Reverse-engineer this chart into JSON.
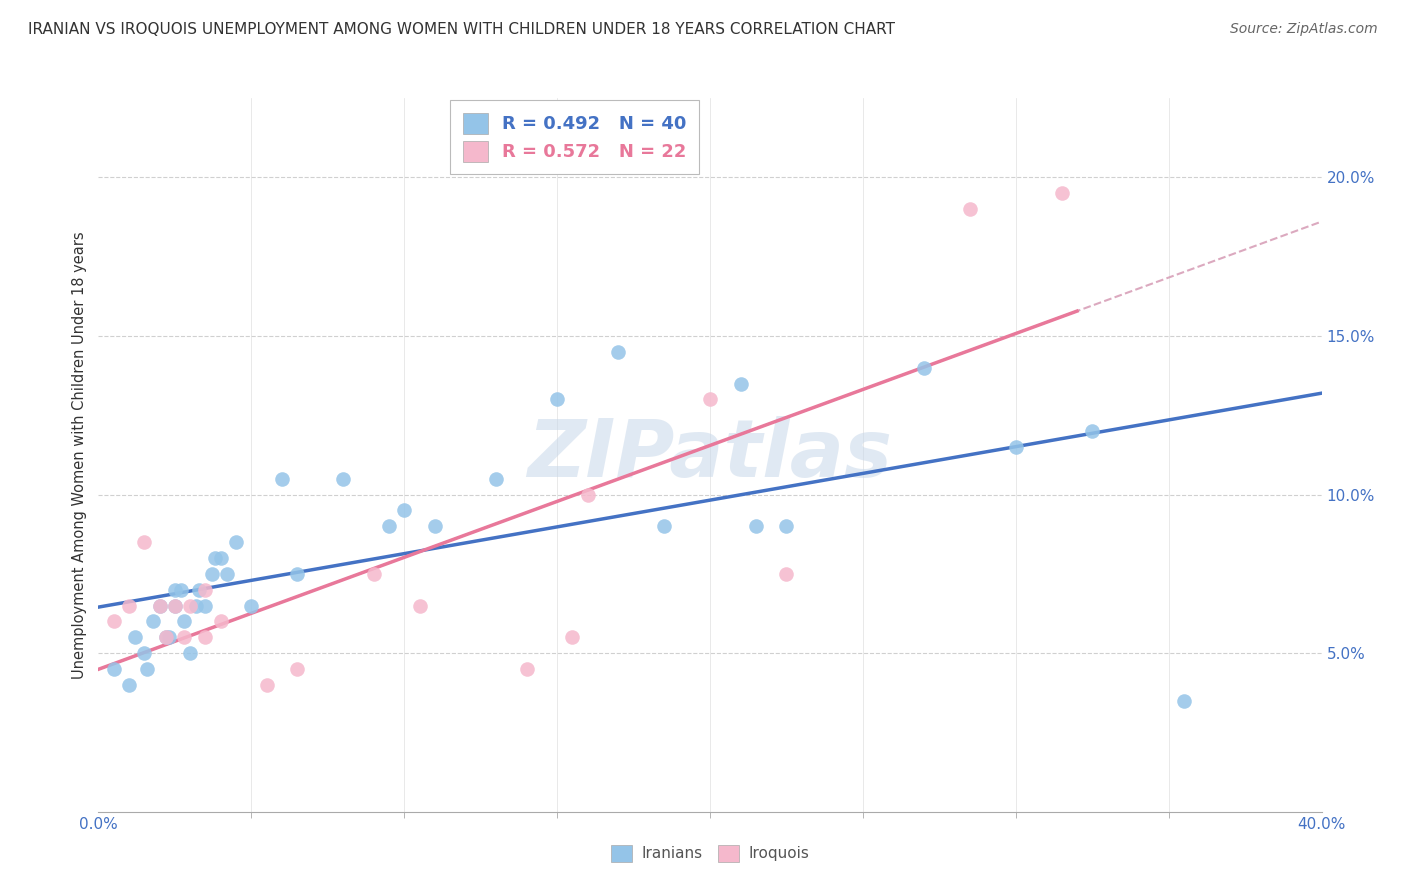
{
  "title": "IRANIAN VS IROQUOIS UNEMPLOYMENT AMONG WOMEN WITH CHILDREN UNDER 18 YEARS CORRELATION CHART",
  "source": "Source: ZipAtlas.com",
  "ylabel": "Unemployment Among Women with Children Under 18 years",
  "xlim": [
    0,
    0.4
  ],
  "ylim": [
    0.0,
    0.225
  ],
  "ytick_positions": [
    0.0,
    0.05,
    0.1,
    0.15,
    0.2
  ],
  "ytick_labels": [
    "",
    "5.0%",
    "10.0%",
    "15.0%",
    "20.0%"
  ],
  "xtick_positions": [
    0.0,
    0.4
  ],
  "xtick_labels": [
    "0.0%",
    "40.0%"
  ],
  "iranians_R": 0.492,
  "iranians_N": 40,
  "iroquois_R": 0.572,
  "iroquois_N": 22,
  "blue_color": "#94c4e8",
  "pink_color": "#f5b8cc",
  "blue_line_color": "#4472c4",
  "pink_line_color": "#e8789a",
  "dashed_line_color": "#d8a0b8",
  "watermark_color": "#c8d8ea",
  "iranians_x": [
    0.005,
    0.01,
    0.012,
    0.015,
    0.016,
    0.018,
    0.02,
    0.022,
    0.023,
    0.025,
    0.025,
    0.027,
    0.028,
    0.03,
    0.032,
    0.033,
    0.035,
    0.037,
    0.038,
    0.04,
    0.042,
    0.045,
    0.05,
    0.06,
    0.065,
    0.08,
    0.095,
    0.1,
    0.11,
    0.13,
    0.15,
    0.17,
    0.185,
    0.21,
    0.215,
    0.225,
    0.27,
    0.3,
    0.325,
    0.355
  ],
  "iranians_y": [
    0.045,
    0.04,
    0.055,
    0.05,
    0.045,
    0.06,
    0.065,
    0.055,
    0.055,
    0.065,
    0.07,
    0.07,
    0.06,
    0.05,
    0.065,
    0.07,
    0.065,
    0.075,
    0.08,
    0.08,
    0.075,
    0.085,
    0.065,
    0.105,
    0.075,
    0.105,
    0.09,
    0.095,
    0.09,
    0.105,
    0.13,
    0.145,
    0.09,
    0.135,
    0.09,
    0.09,
    0.14,
    0.115,
    0.12,
    0.035
  ],
  "iroquois_x": [
    0.005,
    0.01,
    0.015,
    0.02,
    0.022,
    0.025,
    0.028,
    0.03,
    0.035,
    0.035,
    0.04,
    0.055,
    0.065,
    0.09,
    0.105,
    0.14,
    0.155,
    0.16,
    0.2,
    0.225,
    0.285,
    0.315
  ],
  "iroquois_y": [
    0.06,
    0.065,
    0.085,
    0.065,
    0.055,
    0.065,
    0.055,
    0.065,
    0.055,
    0.07,
    0.06,
    0.04,
    0.045,
    0.075,
    0.065,
    0.045,
    0.055,
    0.1,
    0.13,
    0.075,
    0.19,
    0.195
  ]
}
